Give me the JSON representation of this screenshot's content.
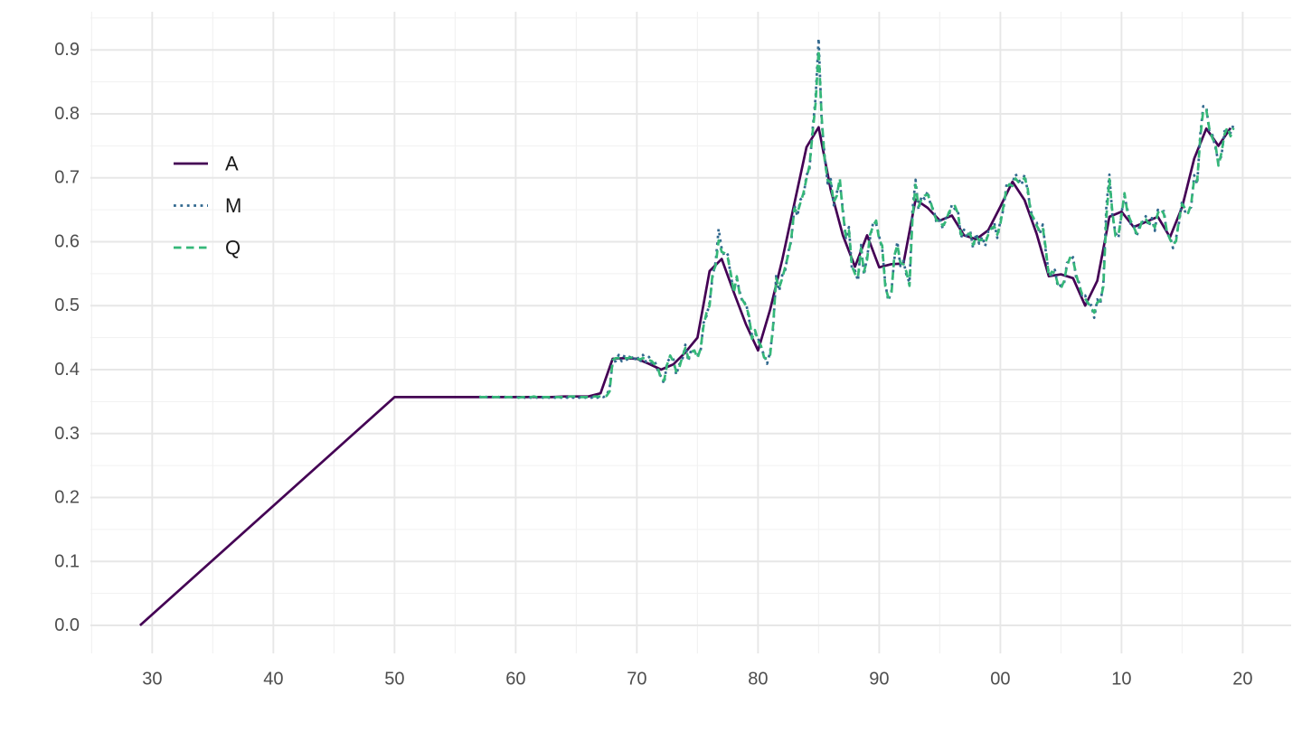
{
  "chart_data": {
    "type": "line",
    "title": "",
    "xlabel": "",
    "ylabel": "",
    "grid": {
      "show": true,
      "major_color": "#E7E7E7",
      "minor_color": "#F1F1F1",
      "background": "#FFFFFF"
    },
    "axis_text_color": "#4D4D4D",
    "legend": {
      "position": "inside-top-left",
      "text_color": "#1A1A1A",
      "entries": [
        "A",
        "M",
        "Q"
      ]
    },
    "x_axis": {
      "lim": [
        1924.9,
        2024.0
      ],
      "tick_positions": [
        1930,
        1940,
        1950,
        1960,
        1970,
        1980,
        1990,
        2000,
        2010,
        2020
      ],
      "tick_labels": [
        "30",
        "40",
        "50",
        "60",
        "70",
        "80",
        "90",
        "00",
        "10",
        "20"
      ],
      "minor_positions": [
        1925,
        1935,
        1945,
        1955,
        1965,
        1975,
        1985,
        1995,
        2005,
        2015
      ]
    },
    "y_axis": {
      "lim": [
        -0.0438,
        0.9597
      ],
      "tick_positions": [
        0.0,
        0.1,
        0.2,
        0.3,
        0.4,
        0.5,
        0.6,
        0.7,
        0.8,
        0.9
      ],
      "tick_labels": [
        "0.0",
        "0.1",
        "0.2",
        "0.3",
        "0.4",
        "0.5",
        "0.6",
        "0.7",
        "0.8",
        "0.9"
      ],
      "minor_positions": [
        0.05,
        0.15,
        0.25,
        0.35,
        0.45,
        0.55,
        0.65,
        0.75,
        0.85,
        0.95
      ]
    },
    "series": [
      {
        "name": "A",
        "color": "#440154",
        "line_style": "solid",
        "x": [
          1929,
          1950,
          1951,
          1952,
          1953,
          1954,
          1955,
          1956,
          1957,
          1958,
          1959,
          1960,
          1961,
          1962,
          1963,
          1964,
          1965,
          1966,
          1967,
          1968,
          1969,
          1970,
          1971,
          1972,
          1973,
          1974,
          1975,
          1976,
          1977,
          1978,
          1979,
          1980,
          1981,
          1982,
          1983,
          1984,
          1985,
          1986,
          1987,
          1988,
          1989,
          1990,
          1991,
          1992,
          1993,
          1994,
          1995,
          1996,
          1997,
          1998,
          1999,
          2000,
          2001,
          2002,
          2003,
          2004,
          2005,
          2006,
          2007,
          2008,
          2009,
          2010,
          2011,
          2012,
          2013,
          2014,
          2015,
          2016,
          2017,
          2018,
          2019
        ],
        "values": [
          0.0,
          0.357,
          0.357,
          0.357,
          0.357,
          0.357,
          0.357,
          0.357,
          0.357,
          0.357,
          0.357,
          0.357,
          0.357,
          0.357,
          0.357,
          0.358,
          0.358,
          0.358,
          0.363,
          0.417,
          0.418,
          0.417,
          0.409,
          0.4,
          0.408,
          0.427,
          0.45,
          0.554,
          0.573,
          0.521,
          0.471,
          0.43,
          0.494,
          0.572,
          0.66,
          0.748,
          0.779,
          0.681,
          0.61,
          0.561,
          0.61,
          0.56,
          0.565,
          0.566,
          0.666,
          0.653,
          0.633,
          0.641,
          0.61,
          0.604,
          0.618,
          0.655,
          0.694,
          0.665,
          0.612,
          0.546,
          0.549,
          0.543,
          0.5,
          0.539,
          0.639,
          0.647,
          0.623,
          0.631,
          0.639,
          0.607,
          0.654,
          0.73,
          0.777,
          0.75,
          0.778
        ]
      },
      {
        "name": "M",
        "color": "#31688E",
        "line_style": "dotted",
        "x_start": 1957.0,
        "x_step": 0.25,
        "values": [
          0.358,
          0.356,
          0.358,
          0.356,
          0.358,
          0.356,
          0.358,
          0.356,
          0.358,
          0.356,
          0.358,
          0.356,
          0.358,
          0.356,
          0.358,
          0.356,
          0.358,
          0.356,
          0.358,
          0.356,
          0.358,
          0.356,
          0.358,
          0.356,
          0.358,
          0.356,
          0.358,
          0.356,
          0.358,
          0.356,
          0.358,
          0.356,
          0.358,
          0.356,
          0.358,
          0.356,
          0.358,
          0.356,
          0.358,
          0.356,
          0.359,
          0.357,
          0.36,
          0.371,
          0.412,
          0.413,
          0.423,
          0.413,
          0.423,
          0.413,
          0.424,
          0.413,
          0.422,
          0.411,
          0.423,
          0.412,
          0.42,
          0.408,
          0.412,
          0.397,
          0.389,
          0.378,
          0.413,
          0.417,
          0.418,
          0.392,
          0.408,
          0.415,
          0.439,
          0.413,
          0.433,
          0.425,
          0.423,
          0.427,
          0.473,
          0.484,
          0.505,
          0.546,
          0.568,
          0.62,
          0.589,
          0.577,
          0.58,
          0.546,
          0.525,
          0.541,
          0.521,
          0.503,
          0.505,
          0.48,
          0.453,
          0.457,
          0.45,
          0.432,
          0.424,
          0.409,
          0.428,
          0.465,
          0.548,
          0.523,
          0.548,
          0.556,
          0.585,
          0.601,
          0.657,
          0.64,
          0.666,
          0.671,
          0.704,
          0.714,
          0.775,
          0.825,
          0.918,
          0.791,
          0.733,
          0.691,
          0.698,
          0.657,
          0.677,
          0.694,
          0.65,
          0.604,
          0.623,
          0.557,
          0.555,
          0.539,
          0.595,
          0.548,
          0.577,
          0.606,
          0.63,
          0.628,
          0.608,
          0.589,
          0.535,
          0.508,
          0.521,
          0.573,
          0.6,
          0.562,
          0.57,
          0.548,
          0.536,
          0.65,
          0.697,
          0.65,
          0.672,
          0.667,
          0.679,
          0.657,
          0.65,
          0.628,
          0.638,
          0.62,
          0.637,
          0.641,
          0.658,
          0.651,
          0.649,
          0.606,
          0.619,
          0.606,
          0.618,
          0.59,
          0.613,
          0.597,
          0.608,
          0.593,
          0.616,
          0.616,
          0.629,
          0.606,
          0.633,
          0.65,
          0.688,
          0.685,
          0.692,
          0.706,
          0.698,
          0.689,
          0.705,
          0.68,
          0.65,
          0.632,
          0.63,
          0.612,
          0.627,
          0.585,
          0.55,
          0.548,
          0.556,
          0.529,
          0.532,
          0.533,
          0.567,
          0.57,
          0.576,
          0.545,
          0.536,
          0.513,
          0.516,
          0.499,
          0.501,
          0.481,
          0.51,
          0.503,
          0.535,
          0.655,
          0.705,
          0.641,
          0.614,
          0.606,
          0.646,
          0.671,
          0.649,
          0.628,
          0.628,
          0.608,
          0.626,
          0.631,
          0.64,
          0.624,
          0.637,
          0.617,
          0.65,
          0.646,
          0.648,
          0.611,
          0.609,
          0.59,
          0.606,
          0.63,
          0.664,
          0.647,
          0.65,
          0.654,
          0.704,
          0.69,
          0.768,
          0.812,
          0.811,
          0.772,
          0.767,
          0.748,
          0.724,
          0.734,
          0.773,
          0.774,
          0.77,
          0.783
        ]
      },
      {
        "name": "Q",
        "color": "#35B779",
        "line_style": "dashed",
        "x_start": 1957.0,
        "x_step": 0.25,
        "values": [
          0.357,
          0.357,
          0.357,
          0.357,
          0.357,
          0.357,
          0.357,
          0.357,
          0.357,
          0.357,
          0.357,
          0.357,
          0.357,
          0.356,
          0.357,
          0.357,
          0.357,
          0.357,
          0.358,
          0.357,
          0.357,
          0.357,
          0.357,
          0.357,
          0.357,
          0.357,
          0.357,
          0.357,
          0.357,
          0.357,
          0.358,
          0.358,
          0.358,
          0.357,
          0.357,
          0.357,
          0.357,
          0.357,
          0.358,
          0.358,
          0.358,
          0.358,
          0.359,
          0.366,
          0.415,
          0.418,
          0.418,
          0.418,
          0.418,
          0.418,
          0.419,
          0.418,
          0.417,
          0.416,
          0.418,
          0.417,
          0.415,
          0.413,
          0.407,
          0.402,
          0.384,
          0.383,
          0.408,
          0.422,
          0.413,
          0.397,
          0.403,
          0.42,
          0.434,
          0.418,
          0.428,
          0.43,
          0.418,
          0.432,
          0.468,
          0.489,
          0.5,
          0.551,
          0.563,
          0.602,
          0.584,
          0.582,
          0.575,
          0.551,
          0.52,
          0.546,
          0.516,
          0.508,
          0.5,
          0.485,
          0.448,
          0.462,
          0.445,
          0.437,
          0.419,
          0.417,
          0.423,
          0.47,
          0.543,
          0.528,
          0.543,
          0.561,
          0.58,
          0.606,
          0.652,
          0.645,
          0.661,
          0.676,
          0.699,
          0.719,
          0.77,
          0.816,
          0.9,
          0.796,
          0.728,
          0.696,
          0.693,
          0.662,
          0.672,
          0.699,
          0.645,
          0.609,
          0.618,
          0.562,
          0.55,
          0.544,
          0.59,
          0.553,
          0.572,
          0.611,
          0.625,
          0.633,
          0.603,
          0.594,
          0.53,
          0.513,
          0.516,
          0.578,
          0.595,
          0.567,
          0.565,
          0.553,
          0.531,
          0.636,
          0.689,
          0.655,
          0.667,
          0.672,
          0.674,
          0.662,
          0.645,
          0.633,
          0.633,
          0.625,
          0.632,
          0.646,
          0.653,
          0.656,
          0.644,
          0.611,
          0.614,
          0.611,
          0.613,
          0.595,
          0.608,
          0.602,
          0.603,
          0.598,
          0.611,
          0.621,
          0.624,
          0.611,
          0.628,
          0.655,
          0.683,
          0.69,
          0.687,
          0.699,
          0.693,
          0.694,
          0.7,
          0.685,
          0.645,
          0.637,
          0.625,
          0.617,
          0.622,
          0.59,
          0.545,
          0.553,
          0.551,
          0.534,
          0.527,
          0.538,
          0.562,
          0.575,
          0.571,
          0.55,
          0.531,
          0.518,
          0.511,
          0.504,
          0.496,
          0.489,
          0.505,
          0.508,
          0.53,
          0.638,
          0.698,
          0.646,
          0.609,
          0.611,
          0.641,
          0.676,
          0.644,
          0.633,
          0.623,
          0.613,
          0.621,
          0.636,
          0.635,
          0.629,
          0.632,
          0.622,
          0.645,
          0.651,
          0.643,
          0.616,
          0.604,
          0.595,
          0.601,
          0.635,
          0.659,
          0.652,
          0.645,
          0.659,
          0.699,
          0.695,
          0.763,
          0.806,
          0.806,
          0.777,
          0.762,
          0.753,
          0.719,
          0.739,
          0.768,
          0.779,
          0.765,
          0.778
        ]
      }
    ]
  }
}
